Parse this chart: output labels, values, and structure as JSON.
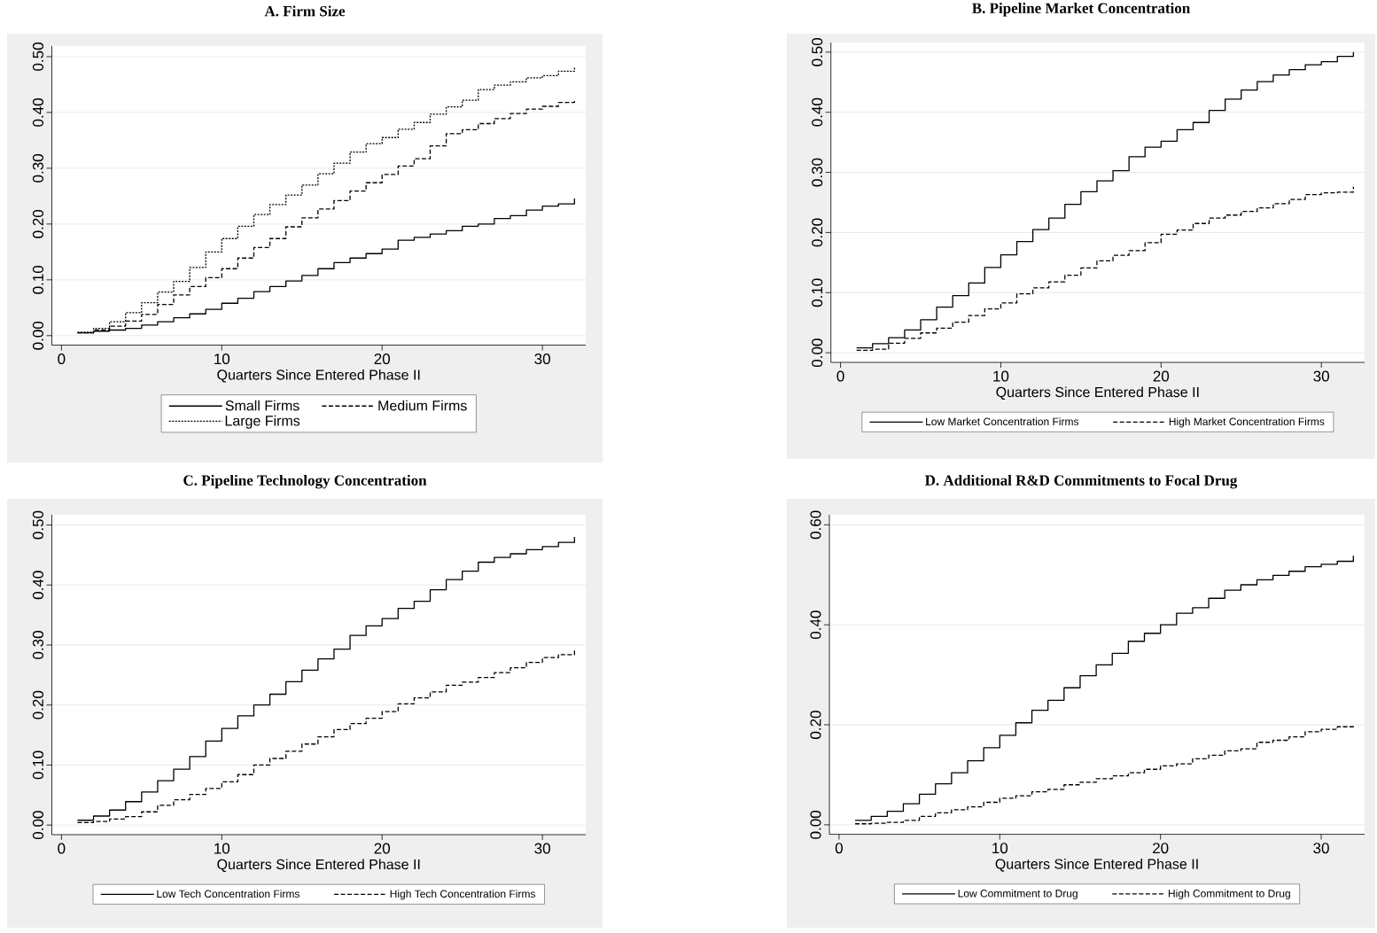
{
  "chart_data": [
    {
      "type": "step",
      "title": "A. Firm Size",
      "xlabel": "Quarters Since Entered Phase II",
      "x": [
        1,
        2,
        3,
        4,
        5,
        6,
        7,
        8,
        9,
        10,
        11,
        12,
        13,
        14,
        15,
        16,
        17,
        18,
        19,
        20,
        21,
        22,
        23,
        24,
        25,
        26,
        27,
        28,
        29,
        30,
        31,
        32
      ],
      "xlim": [
        -0.6,
        32.7
      ],
      "ylim": [
        -0.017,
        0.519
      ],
      "xticks": [
        0,
        10,
        20,
        30
      ],
      "yticks": [
        {
          "value": 0,
          "label": "0.00"
        },
        {
          "value": 0.1,
          "label": "0.10"
        },
        {
          "value": 0.2,
          "label": "0.20"
        },
        {
          "value": 0.3,
          "label": "0.30"
        },
        {
          "value": 0.4,
          "label": "0.40"
        },
        {
          "value": 0.5,
          "label": "0.50"
        }
      ],
      "grid": "y",
      "legend": "bottom",
      "marker": "none",
      "series": [
        {
          "name": "Small Firms",
          "color": "#000000",
          "line_style": "solid",
          "values": [
            0.005,
            0.008,
            0.01,
            0.013,
            0.019,
            0.025,
            0.032,
            0.039,
            0.047,
            0.058,
            0.067,
            0.079,
            0.088,
            0.098,
            0.108,
            0.12,
            0.131,
            0.139,
            0.147,
            0.155,
            0.171,
            0.176,
            0.182,
            0.188,
            0.196,
            0.2,
            0.21,
            0.215,
            0.225,
            0.232,
            0.236,
            0.246
          ]
        },
        {
          "name": "Medium Firms",
          "color": "#000000",
          "line_style": "dashed",
          "values": [
            0.005,
            0.01,
            0.017,
            0.026,
            0.038,
            0.056,
            0.073,
            0.088,
            0.104,
            0.12,
            0.139,
            0.158,
            0.174,
            0.195,
            0.211,
            0.227,
            0.242,
            0.259,
            0.274,
            0.289,
            0.304,
            0.317,
            0.34,
            0.362,
            0.369,
            0.38,
            0.389,
            0.398,
            0.406,
            0.411,
            0.418,
            0.424
          ]
        },
        {
          "name": "Large Firms",
          "color": "#000000",
          "line_style": "dotted",
          "values": [
            0.006,
            0.013,
            0.025,
            0.041,
            0.059,
            0.078,
            0.097,
            0.122,
            0.15,
            0.174,
            0.196,
            0.217,
            0.235,
            0.252,
            0.27,
            0.29,
            0.309,
            0.329,
            0.344,
            0.355,
            0.37,
            0.382,
            0.397,
            0.41,
            0.422,
            0.441,
            0.449,
            0.455,
            0.462,
            0.466,
            0.474,
            0.48
          ]
        }
      ]
    },
    {
      "type": "step",
      "title": "B. Pipeline Market Concentration",
      "xlabel": "Quarters Since Entered Phase II",
      "x": [
        1,
        2,
        3,
        4,
        5,
        6,
        7,
        8,
        9,
        10,
        11,
        12,
        13,
        14,
        15,
        16,
        17,
        18,
        19,
        20,
        21,
        22,
        23,
        24,
        25,
        26,
        27,
        28,
        29,
        30,
        31,
        32
      ],
      "xlim": [
        -0.6,
        32.7
      ],
      "ylim": [
        -0.016,
        0.516
      ],
      "xticks": [
        0,
        10,
        20,
        30
      ],
      "yticks": [
        {
          "value": 0,
          "label": "0.00"
        },
        {
          "value": 0.1,
          "label": "0.10"
        },
        {
          "value": 0.2,
          "label": "0.20"
        },
        {
          "value": 0.3,
          "label": "0.30"
        },
        {
          "value": 0.4,
          "label": "0.40"
        },
        {
          "value": 0.5,
          "label": "0.50"
        }
      ],
      "grid": "y",
      "legend": "bottom",
      "marker": "none",
      "series": [
        {
          "name": "Low Market Concentration Firms",
          "color": "#000000",
          "line_style": "solid",
          "values": [
            0.008,
            0.015,
            0.025,
            0.038,
            0.055,
            0.076,
            0.095,
            0.116,
            0.142,
            0.163,
            0.185,
            0.205,
            0.224,
            0.247,
            0.268,
            0.286,
            0.303,
            0.326,
            0.342,
            0.352,
            0.371,
            0.383,
            0.403,
            0.422,
            0.437,
            0.451,
            0.462,
            0.471,
            0.479,
            0.484,
            0.493,
            0.5
          ]
        },
        {
          "name": "High Market Concentration Firms",
          "color": "#000000",
          "line_style": "dashed",
          "values": [
            0.004,
            0.006,
            0.016,
            0.024,
            0.033,
            0.041,
            0.051,
            0.062,
            0.073,
            0.083,
            0.098,
            0.108,
            0.118,
            0.129,
            0.141,
            0.153,
            0.162,
            0.17,
            0.183,
            0.197,
            0.204,
            0.215,
            0.224,
            0.229,
            0.235,
            0.241,
            0.248,
            0.255,
            0.263,
            0.266,
            0.267,
            0.276
          ]
        }
      ]
    },
    {
      "type": "step",
      "title": "C. Pipeline Technology Concentration",
      "xlabel": "Quarters Since Entered Phase II",
      "x": [
        1,
        2,
        3,
        4,
        5,
        6,
        7,
        8,
        9,
        10,
        11,
        12,
        13,
        14,
        15,
        16,
        17,
        18,
        19,
        20,
        21,
        22,
        23,
        24,
        25,
        26,
        27,
        28,
        29,
        30,
        31,
        32
      ],
      "xlim": [
        -0.6,
        32.7
      ],
      "ylim": [
        -0.016,
        0.517
      ],
      "xticks": [
        0,
        10,
        20,
        30
      ],
      "yticks": [
        {
          "value": 0,
          "label": "0.00"
        },
        {
          "value": 0.1,
          "label": "0.10"
        },
        {
          "value": 0.2,
          "label": "0.20"
        },
        {
          "value": 0.3,
          "label": "0.30"
        },
        {
          "value": 0.4,
          "label": "0.40"
        },
        {
          "value": 0.5,
          "label": "0.50"
        }
      ],
      "grid": "y",
      "legend": "bottom",
      "marker": "none",
      "series": [
        {
          "name": "Low Tech Concentration Firms",
          "color": "#000000",
          "line_style": "solid",
          "values": [
            0.008,
            0.015,
            0.025,
            0.039,
            0.055,
            0.074,
            0.093,
            0.114,
            0.14,
            0.161,
            0.182,
            0.2,
            0.218,
            0.239,
            0.258,
            0.277,
            0.293,
            0.316,
            0.332,
            0.344,
            0.361,
            0.373,
            0.392,
            0.409,
            0.423,
            0.438,
            0.446,
            0.452,
            0.459,
            0.464,
            0.471,
            0.48
          ]
        },
        {
          "name": "High Tech Concentration Firms",
          "color": "#000000",
          "line_style": "dashed",
          "values": [
            0.004,
            0.006,
            0.01,
            0.014,
            0.022,
            0.033,
            0.042,
            0.051,
            0.061,
            0.072,
            0.084,
            0.1,
            0.111,
            0.123,
            0.135,
            0.147,
            0.159,
            0.169,
            0.178,
            0.189,
            0.202,
            0.212,
            0.222,
            0.233,
            0.238,
            0.246,
            0.254,
            0.262,
            0.271,
            0.279,
            0.284,
            0.292
          ]
        }
      ]
    },
    {
      "type": "step",
      "title": "D. Additional R&D Commitments to Focal Drug",
      "xlabel": "Quarters Since Entered Phase II",
      "x": [
        1,
        2,
        3,
        4,
        5,
        6,
        7,
        8,
        9,
        10,
        11,
        12,
        13,
        14,
        15,
        16,
        17,
        18,
        19,
        20,
        21,
        22,
        23,
        24,
        25,
        26,
        27,
        28,
        29,
        30,
        31,
        32
      ],
      "xlim": [
        -0.6,
        32.7
      ],
      "ylim": [
        -0.019,
        0.62
      ],
      "xticks": [
        0,
        10,
        20,
        30
      ],
      "yticks": [
        {
          "value": 0,
          "label": "0.00"
        },
        {
          "value": 0.2,
          "label": "0.20"
        },
        {
          "value": 0.4,
          "label": "0.40"
        },
        {
          "value": 0.6,
          "label": "0.60"
        }
      ],
      "grid": "y",
      "legend": "bottom",
      "marker": "none",
      "series": [
        {
          "name": "Low Commitment to Drug",
          "color": "#000000",
          "line_style": "solid",
          "values": [
            0.009,
            0.017,
            0.027,
            0.042,
            0.061,
            0.082,
            0.104,
            0.128,
            0.154,
            0.179,
            0.204,
            0.229,
            0.249,
            0.274,
            0.298,
            0.32,
            0.343,
            0.367,
            0.383,
            0.4,
            0.423,
            0.434,
            0.453,
            0.469,
            0.48,
            0.49,
            0.499,
            0.507,
            0.516,
            0.521,
            0.527,
            0.538
          ]
        },
        {
          "name": "High Commitment to Drug",
          "color": "#000000",
          "line_style": "dashed",
          "values": [
            0.002,
            0.003,
            0.005,
            0.009,
            0.017,
            0.024,
            0.03,
            0.036,
            0.045,
            0.053,
            0.058,
            0.066,
            0.071,
            0.08,
            0.085,
            0.092,
            0.098,
            0.104,
            0.111,
            0.118,
            0.122,
            0.132,
            0.139,
            0.148,
            0.152,
            0.165,
            0.169,
            0.176,
            0.186,
            0.191,
            0.196,
            0.201
          ]
        }
      ]
    }
  ]
}
